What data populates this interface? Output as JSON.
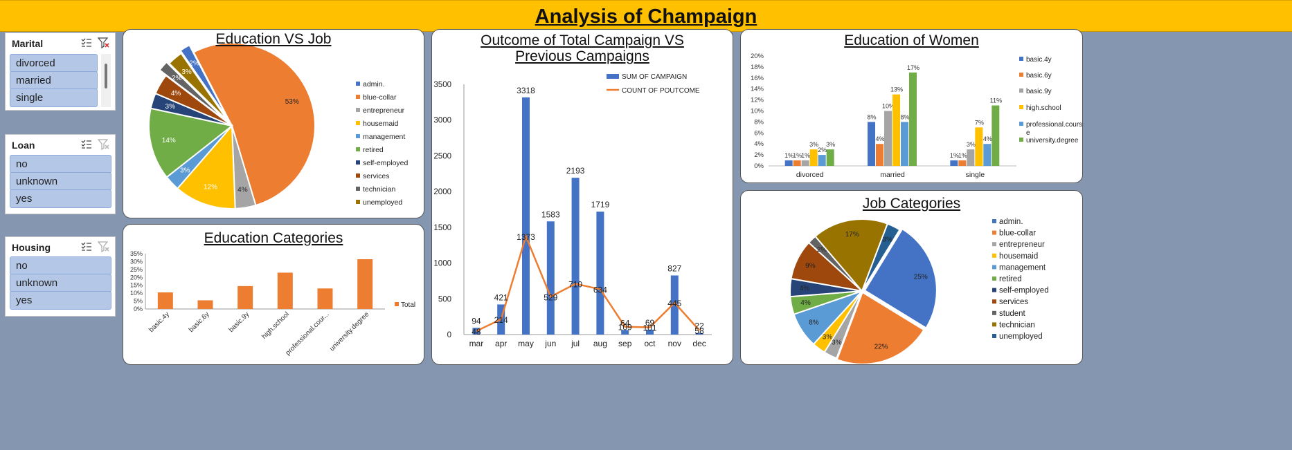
{
  "header": {
    "title": "Analysis of Champaign"
  },
  "slicers": {
    "marital": {
      "title": "Marital",
      "items": [
        "divorced",
        "married",
        "single"
      ]
    },
    "loan": {
      "title": "Loan",
      "items": [
        "no",
        "unknown",
        "yes"
      ]
    },
    "housing": {
      "title": "Housing",
      "items": [
        "no",
        "unknown",
        "yes"
      ]
    }
  },
  "colors": {
    "admin.": "#4472c4",
    "blue-collar": "#ed7d31",
    "entrepreneur": "#a5a5a5",
    "housemaid": "#ffc000",
    "management": "#5b9bd5",
    "retired": "#70ad47",
    "self-employed": "#264478",
    "services": "#9e480e",
    "student": "#636363",
    "technician": "#636363",
    "unemployed": "#997300",
    "unemployed2": "#255e91"
  },
  "chart_data": [
    {
      "id": "edu_vs_job",
      "type": "pie",
      "title": "Education VS Job",
      "labels": [
        "blue-collar",
        "entrepreneur",
        "housemaid",
        "management",
        "retired",
        "self-employed",
        "services",
        "technician",
        "unemployed",
        "admin."
      ],
      "values": [
        53,
        4,
        12,
        3,
        14,
        3,
        4,
        2,
        3,
        2
      ],
      "data_labels": [
        "53%",
        "4%",
        "12%",
        "3%",
        "14%",
        "3%",
        "4%",
        "2%",
        "3%",
        "2%"
      ],
      "legend": [
        "admin.",
        "blue-collar",
        "entrepreneur",
        "housemaid",
        "management",
        "retired",
        "self-employed",
        "services",
        "technician",
        "unemployed"
      ],
      "legend_position": "right"
    },
    {
      "id": "edu_categories",
      "type": "bar",
      "title": "Education Categories",
      "categories": [
        "basic.4y",
        "basic.6y",
        "basic.9y",
        "high.school",
        "professional.cour...",
        "university.degree"
      ],
      "series": [
        {
          "name": "Total",
          "values": [
            10.5,
            5.5,
            14.5,
            23,
            13,
            31.5
          ]
        }
      ],
      "y_ticks": [
        "0%",
        "5%",
        "10%",
        "15%",
        "20%",
        "25%",
        "30%",
        "35%"
      ],
      "ylim": [
        0,
        35
      ],
      "legend_position": "right"
    },
    {
      "id": "outcome",
      "type": "bar",
      "title": "Outcome of Total Campaign VS Previous Campaigns",
      "categories": [
        "mar",
        "apr",
        "may",
        "jun",
        "jul",
        "aug",
        "sep",
        "oct",
        "nov",
        "dec"
      ],
      "series": [
        {
          "name": "Sum of Campaign",
          "type": "bar",
          "values": [
            94,
            421,
            3318,
            1583,
            2193,
            1719,
            64,
            69,
            827,
            22
          ]
        },
        {
          "name": "Count of poutcome",
          "type": "line",
          "values": [
            48,
            214,
            1373,
            529,
            710,
            634,
            109,
            101,
            445,
            58
          ]
        }
      ],
      "bar_labels": [
        "94",
        "421",
        "3318",
        "1583",
        "2193",
        "1719",
        "64",
        "69",
        "827",
        "22"
      ],
      "line_labels": [
        "48",
        "214",
        "1373",
        "529",
        "710",
        "634",
        "109",
        "101",
        "445",
        "58"
      ],
      "y_ticks": [
        "0",
        "500",
        "1000",
        "1500",
        "2000",
        "2500",
        "3000",
        "3500"
      ],
      "ylim": [
        0,
        3500
      ],
      "legend_position": "top-right"
    },
    {
      "id": "edu_women",
      "type": "bar",
      "title": "Education of Women",
      "categories": [
        "divorced",
        "married",
        "single"
      ],
      "series": [
        {
          "name": "basic.4y",
          "values": [
            1,
            8,
            1
          ]
        },
        {
          "name": "basic.6y",
          "values": [
            1,
            4,
            1
          ]
        },
        {
          "name": "basic.9y",
          "values": [
            1,
            10,
            3
          ]
        },
        {
          "name": "high.school",
          "values": [
            3,
            13,
            7
          ]
        },
        {
          "name": "professional.course",
          "values": [
            2,
            8,
            4
          ]
        },
        {
          "name": "university.degree",
          "values": [
            3,
            17,
            11
          ]
        }
      ],
      "value_labels": [
        [
          "1%",
          "1%",
          "1%",
          "3%",
          "2%",
          "3%"
        ],
        [
          "8%",
          "4%",
          "10%",
          "13%",
          "8%",
          "17%"
        ],
        [
          "1%",
          "1%",
          "3%",
          "7%",
          "4%",
          "11%"
        ]
      ],
      "legend": [
        "basic.4y",
        "basic.6y",
        "basic.9y",
        "high.school",
        "professional.cours e",
        "university.degree"
      ],
      "y_ticks": [
        "0%",
        "2%",
        "4%",
        "6%",
        "8%",
        "10%",
        "12%",
        "14%",
        "16%",
        "18%",
        "20%"
      ],
      "ylim": [
        0,
        20
      ],
      "legend_position": "right"
    },
    {
      "id": "job_categories",
      "type": "pie",
      "title": "Job Categories",
      "labels": [
        "admin.",
        "blue-collar",
        "entrepreneur",
        "housemaid",
        "management",
        "retired",
        "self-employed",
        "services",
        "student",
        "technician",
        "unemployed"
      ],
      "values": [
        25,
        22,
        3,
        3,
        8,
        4,
        4,
        9,
        2,
        17,
        3
      ],
      "data_labels": [
        "25%",
        "22%",
        "3%",
        "3%",
        "8%",
        "4%",
        "4%",
        "9%",
        "2%",
        "17%",
        "3%"
      ],
      "legend": [
        "admin.",
        "blue-collar",
        "entrepreneur",
        "housemaid",
        "management",
        "retired",
        "self-employed",
        "services",
        "student",
        "technician",
        "unemployed"
      ],
      "legend_position": "right"
    }
  ]
}
